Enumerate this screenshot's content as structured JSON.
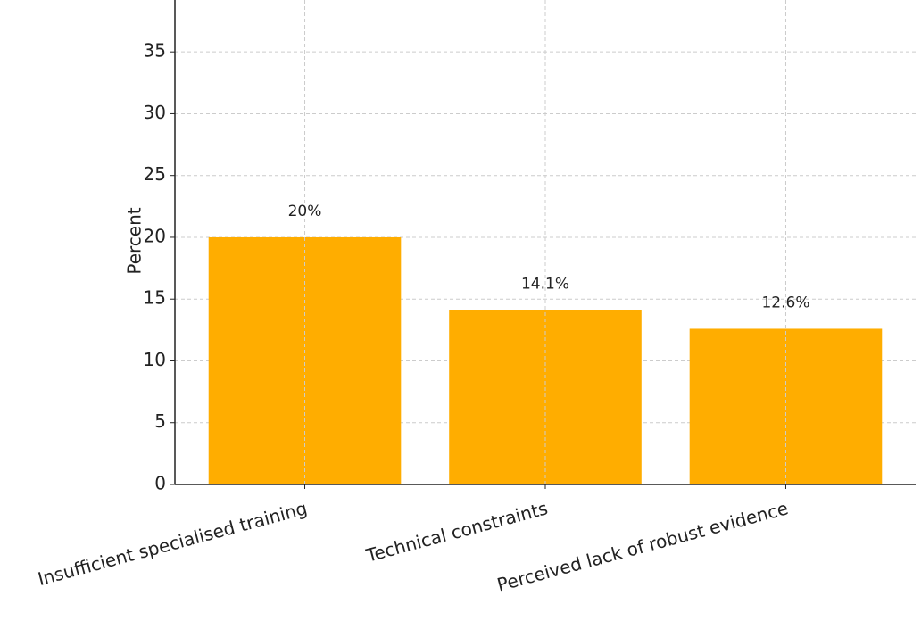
{
  "chart_data": {
    "type": "bar",
    "y_label": "Percent",
    "categories": [
      "Insufficient specialised training",
      "Technical constraints",
      "Perceived lack of robust evidence"
    ],
    "values": [
      20,
      14.1,
      12.6
    ],
    "value_labels": [
      "20%",
      "14.1%",
      "12.6%"
    ],
    "color": "#ffad00",
    "ylim": [
      0,
      39.2
    ],
    "yticks": [
      0,
      5,
      10,
      15,
      20,
      25,
      30,
      35
    ],
    "grid": true
  }
}
